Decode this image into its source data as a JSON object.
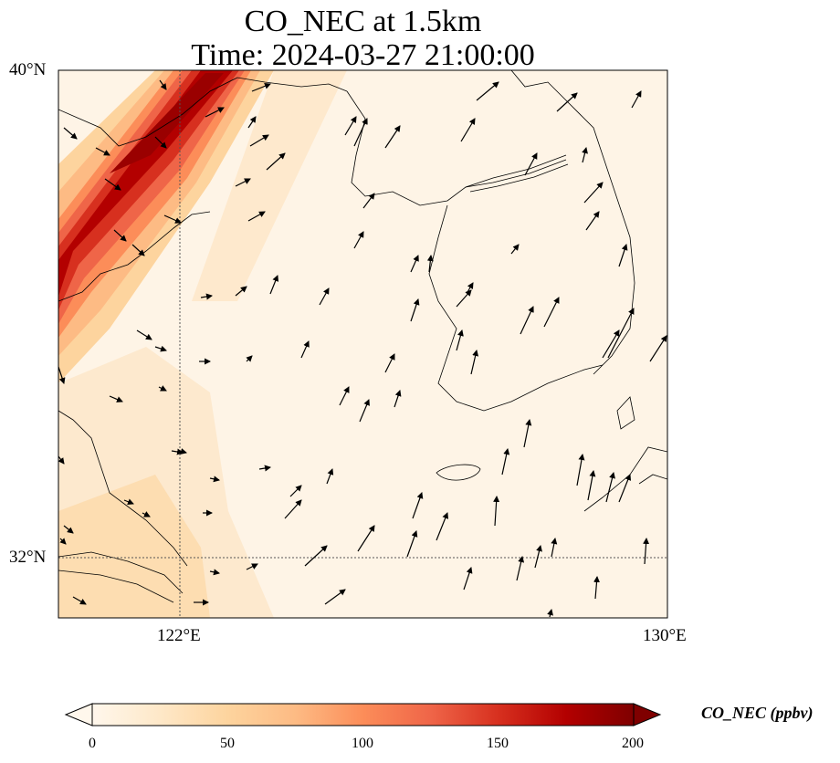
{
  "title": {
    "line1": "CO_NEC at 1.5km",
    "line2": "Time: 2024-03-27 21:00:00"
  },
  "axes": {
    "lat_ticks": [
      {
        "label": "40°N",
        "value": 40
      },
      {
        "label": "32°N",
        "value": 32
      }
    ],
    "lon_ticks": [
      {
        "label": "122°E",
        "value": 122
      },
      {
        "label": "130°E",
        "value": 130
      }
    ],
    "lat_range": [
      31,
      40
    ],
    "lon_range": [
      120,
      130
    ],
    "gridlines": "dotted"
  },
  "colorbar": {
    "label": "CO_NEC (ppbv)",
    "ticks": [
      {
        "label": "0",
        "value": 0
      },
      {
        "label": "50",
        "value": 50
      },
      {
        "label": "100",
        "value": 100
      },
      {
        "label": "150",
        "value": 150
      },
      {
        "label": "200",
        "value": 200
      }
    ],
    "range": [
      0,
      200
    ],
    "extend": "both",
    "colormap": "OrRd",
    "colors": [
      "#fff7ec",
      "#fee8c8",
      "#fdd49e",
      "#fdbb84",
      "#fc8d59",
      "#ef6548",
      "#d7301f",
      "#b30000",
      "#7f0000"
    ]
  },
  "chart_data": {
    "type": "heatmap",
    "variable": "CO_NEC",
    "units": "ppbv",
    "plume": {
      "description_values": "high CO band along the northwest corner",
      "max_value": 200,
      "background_value": 15
    }
  }
}
